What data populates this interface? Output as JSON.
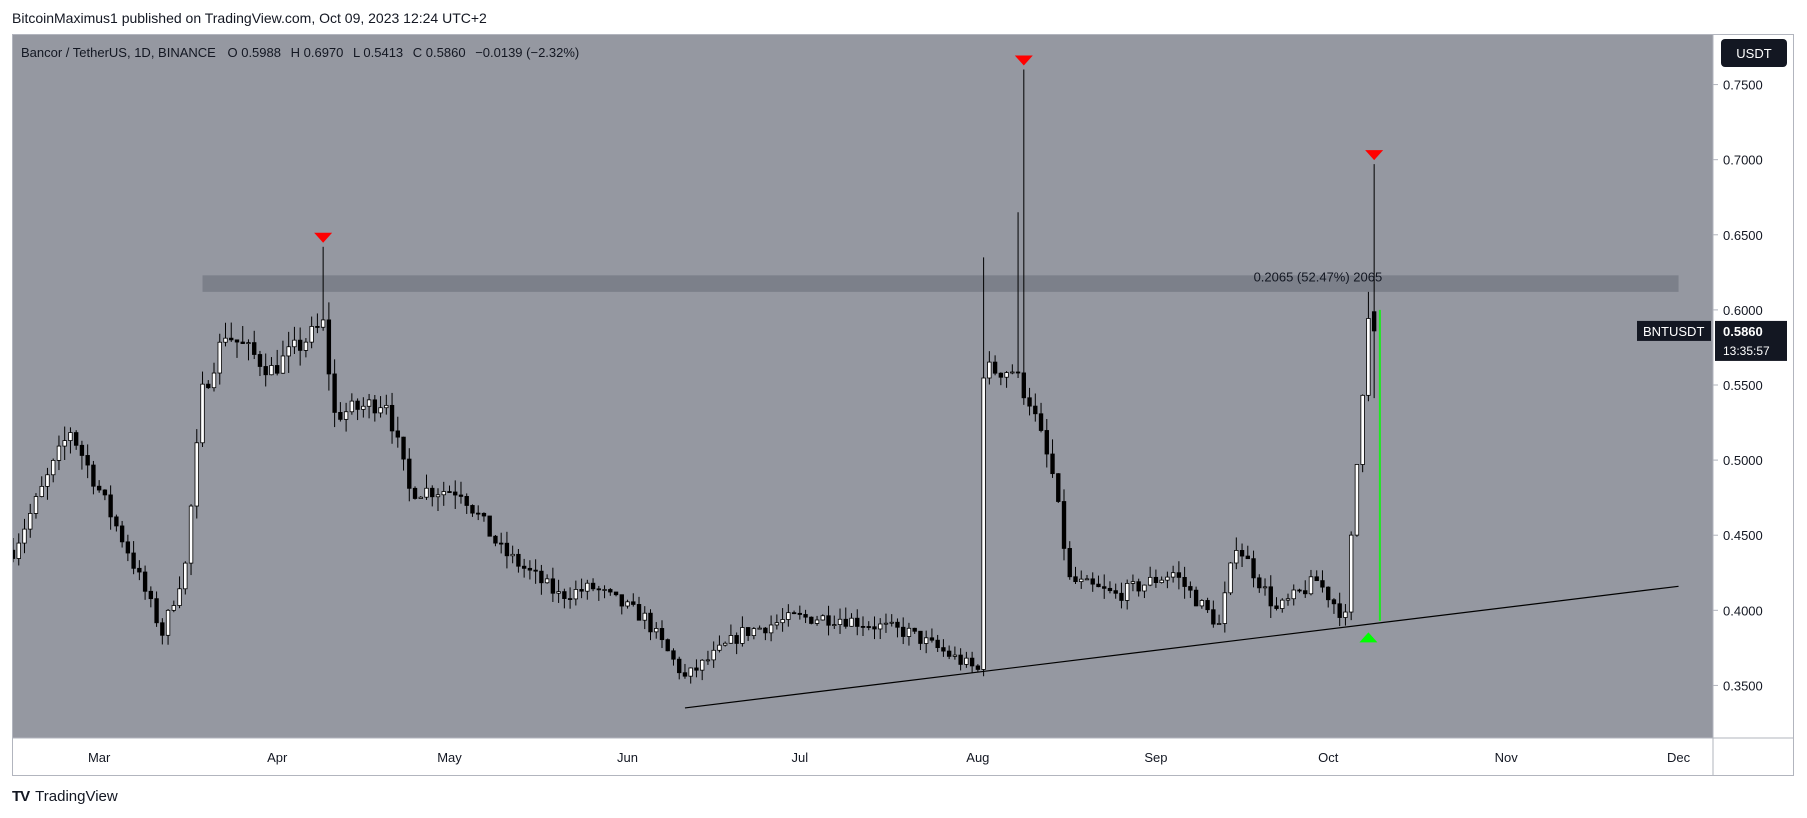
{
  "header": {
    "text": "BitcoinMaximus1 published on TradingView.com, Oct 09, 2023 12:24 UTC+2"
  },
  "footer": {
    "brand": "TradingView"
  },
  "legend": {
    "symbol": "Bancor / TetherUS, 1D, BINANCE",
    "o_label": "O",
    "o_value": "0.5988",
    "h_label": "H",
    "h_value": "0.6970",
    "l_label": "L",
    "l_value": "0.5413",
    "c_label": "C",
    "c_value": "0.5860",
    "change": "−0.0139 (−2.32%)"
  },
  "currency_button": "USDT",
  "price_label": {
    "symbol": "BNTUSDT",
    "price": "0.5860",
    "countdown": "13:35:57"
  },
  "measure_label": "0.2065 (52.47%) 2065",
  "colors": {
    "background": "#9598a1",
    "up": "#ffffff",
    "down": "#000000",
    "marker_down": "#ff0000",
    "marker_up": "#00ff00",
    "zone": "#787b86"
  },
  "chart_data": {
    "type": "candlestick",
    "xlim": [
      "2023-02-14",
      "2023-12-07"
    ],
    "ylim": [
      0.315,
      0.783
    ],
    "y_ticks": [
      "0.3500",
      "0.4000",
      "0.4500",
      "0.5000",
      "0.5500",
      "0.6000",
      "0.6500",
      "0.7000",
      "0.7500"
    ],
    "x_ticks": [
      {
        "label": "Mar",
        "date": "2023-03-01"
      },
      {
        "label": "Apr",
        "date": "2023-04-01"
      },
      {
        "label": "May",
        "date": "2023-05-01"
      },
      {
        "label": "Jun",
        "date": "2023-06-01"
      },
      {
        "label": "Jul",
        "date": "2023-07-01"
      },
      {
        "label": "Aug",
        "date": "2023-08-01"
      },
      {
        "label": "Sep",
        "date": "2023-09-01"
      },
      {
        "label": "Oct",
        "date": "2023-10-01"
      },
      {
        "label": "Nov",
        "date": "2023-11-01"
      },
      {
        "label": "Dec",
        "date": "2023-12-01"
      }
    ],
    "series": [
      {
        "points": [
          {
            "x": "2023-02-14",
            "y": 0.44
          },
          {
            "x": "2023-02-24",
            "y": 0.52
          },
          {
            "x": "2023-03-06",
            "y": 0.44
          },
          {
            "x": "2023-03-12",
            "y": 0.385
          },
          {
            "x": "2023-03-16",
            "y": 0.43
          },
          {
            "x": "2023-03-19",
            "y": 0.545
          },
          {
            "x": "2023-03-23",
            "y": 0.585
          },
          {
            "x": "2023-03-31",
            "y": 0.56
          },
          {
            "x": "2023-04-09",
            "y": 0.59
          },
          {
            "x": "2023-04-11",
            "y": 0.53
          },
          {
            "x": "2023-04-20",
            "y": 0.54
          },
          {
            "x": "2023-04-24",
            "y": 0.48
          },
          {
            "x": "2023-05-03",
            "y": 0.48
          },
          {
            "x": "2023-05-10",
            "y": 0.44
          },
          {
            "x": "2023-05-20",
            "y": 0.41
          },
          {
            "x": "2023-05-26",
            "y": 0.415
          },
          {
            "x": "2023-06-04",
            "y": 0.395
          },
          {
            "x": "2023-06-11",
            "y": 0.355
          },
          {
            "x": "2023-06-21",
            "y": 0.385
          },
          {
            "x": "2023-06-30",
            "y": 0.395
          },
          {
            "x": "2023-07-08",
            "y": 0.395
          },
          {
            "x": "2023-07-20",
            "y": 0.385
          },
          {
            "x": "2023-08-01",
            "y": 0.36
          },
          {
            "x": "2023-08-02",
            "y": 0.56
          },
          {
            "x": "2023-08-07",
            "y": 0.56
          },
          {
            "x": "2023-08-10",
            "y": 0.54
          },
          {
            "x": "2023-08-14",
            "y": 0.49
          },
          {
            "x": "2023-08-17",
            "y": 0.42
          },
          {
            "x": "2023-08-25",
            "y": 0.41
          },
          {
            "x": "2023-09-04",
            "y": 0.425
          },
          {
            "x": "2023-09-12",
            "y": 0.39
          },
          {
            "x": "2023-09-15",
            "y": 0.445
          },
          {
            "x": "2023-09-22",
            "y": 0.4
          },
          {
            "x": "2023-09-29",
            "y": 0.42
          },
          {
            "x": "2023-10-04",
            "y": 0.395
          },
          {
            "x": "2023-10-08",
            "y": 0.6
          },
          {
            "x": "2023-10-09",
            "y": 0.586
          }
        ]
      }
    ],
    "last_ohlc": {
      "open": 0.5988,
      "high": 0.697,
      "low": 0.5413,
      "close": 0.586
    },
    "resistance_zone": [
      0.612,
      0.623
    ],
    "trendline": [
      {
        "x": "2023-06-11",
        "y": 0.335
      },
      {
        "x": "2023-12-01",
        "y": 0.416
      }
    ],
    "measure": {
      "date": "2023-10-10",
      "from": 0.393,
      "to": 0.6
    },
    "markers_down": [
      {
        "x": "2023-04-09",
        "y": 0.642
      },
      {
        "x": "2023-08-09",
        "y": 0.76
      },
      {
        "x": "2023-10-09",
        "y": 0.697
      }
    ],
    "markers_up": [
      {
        "x": "2023-10-08",
        "y": 0.388
      }
    ]
  }
}
